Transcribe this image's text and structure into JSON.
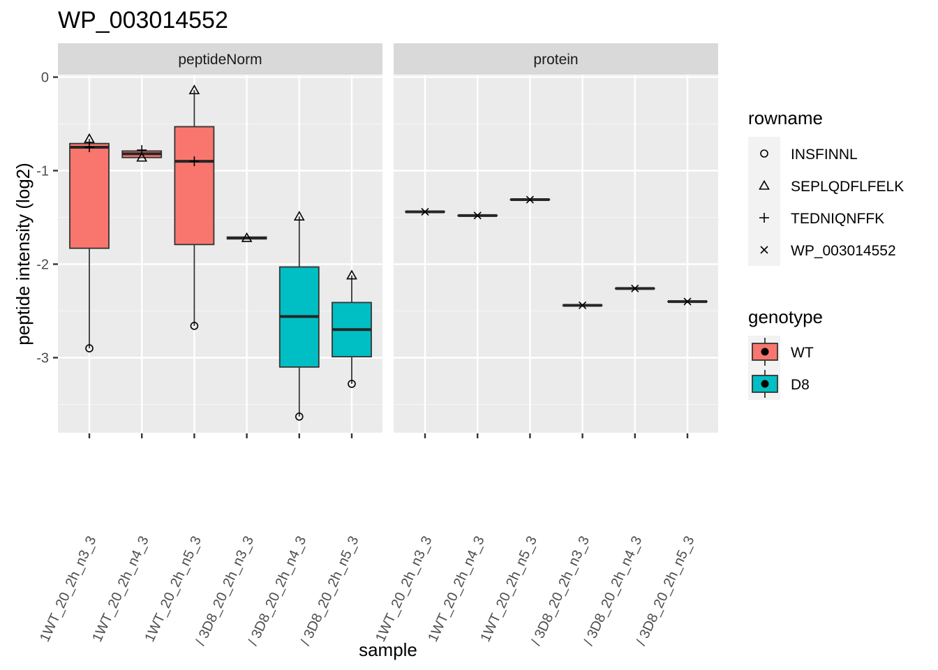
{
  "chart_data": {
    "type": "box",
    "title": "WP_003014552",
    "xlabel": "sample",
    "ylabel": "peptide intensity (log2)",
    "ylim": [
      -3.8,
      0.1
    ],
    "y_ticks": [
      0,
      -1,
      -2,
      -3
    ],
    "y_tick_labels": [
      "0",
      "-1",
      "-2",
      "-3"
    ],
    "grid": true,
    "legend_position": "right",
    "facets": [
      "peptideNorm",
      "protein"
    ],
    "x_tick_labels": [
      "1WT_20_2h_n3_3",
      "1WT_20_2h_n4_3",
      "1WT_20_2h_n5_3",
      "/ 3D8_20_2h_n3_3",
      "/ 3D8_20_2h_n4_3",
      "/ 3D8_20_2h_n5_3"
    ],
    "genotype_legend": {
      "title": "genotype",
      "items": [
        {
          "label": "WT",
          "color": "#F8766D"
        },
        {
          "label": "D8",
          "color": "#00BFC4"
        }
      ]
    },
    "rowname_legend": {
      "title": "rowname",
      "items": [
        {
          "label": "INSFINNL",
          "shape": "circle"
        },
        {
          "label": "SEPLQDFLFELK",
          "shape": "triangle"
        },
        {
          "label": "TEDNIQNFFK",
          "shape": "plus"
        },
        {
          "label": "WP_003014552",
          "shape": "cross"
        }
      ]
    },
    "panels": [
      {
        "facet": "peptideNorm",
        "boxes": [
          {
            "sample": 0,
            "genotype": "WT",
            "q1": -1.83,
            "median": -0.75,
            "q3": -0.71,
            "whisker_low": -2.9,
            "whisker_high": -0.66
          },
          {
            "sample": 1,
            "genotype": "WT",
            "q1": -0.86,
            "median": -0.82,
            "q3": -0.79,
            "whisker_low": -0.86,
            "whisker_high": -0.79
          },
          {
            "sample": 2,
            "genotype": "WT",
            "q1": -1.79,
            "median": -0.9,
            "q3": -0.53,
            "whisker_low": -2.66,
            "whisker_high": -0.14
          },
          {
            "sample": 3,
            "genotype": "D8",
            "q1": -1.73,
            "median": -1.72,
            "q3": -1.71,
            "whisker_low": -1.73,
            "whisker_high": -1.71
          },
          {
            "sample": 4,
            "genotype": "D8",
            "q1": -3.1,
            "median": -2.56,
            "q3": -2.03,
            "whisker_low": -3.63,
            "whisker_high": -1.49
          },
          {
            "sample": 5,
            "genotype": "D8",
            "q1": -2.99,
            "median": -2.7,
            "q3": -2.41,
            "whisker_low": -3.28,
            "whisker_high": -2.12
          }
        ],
        "points": [
          {
            "sample": 0,
            "rowname": "INSFINNL",
            "y": -2.9
          },
          {
            "sample": 0,
            "rowname": "SEPLQDFLFELK",
            "y": -0.66
          },
          {
            "sample": 0,
            "rowname": "TEDNIQNFFK",
            "y": -0.75
          },
          {
            "sample": 1,
            "rowname": "SEPLQDFLFELK",
            "y": -0.86
          },
          {
            "sample": 1,
            "rowname": "TEDNIQNFFK",
            "y": -0.78
          },
          {
            "sample": 2,
            "rowname": "INSFINNL",
            "y": -2.66
          },
          {
            "sample": 2,
            "rowname": "SEPLQDFLFELK",
            "y": -0.14
          },
          {
            "sample": 2,
            "rowname": "TEDNIQNFFK",
            "y": -0.9
          },
          {
            "sample": 3,
            "rowname": "SEPLQDFLFELK",
            "y": -1.72
          },
          {
            "sample": 4,
            "rowname": "INSFINNL",
            "y": -3.63
          },
          {
            "sample": 4,
            "rowname": "SEPLQDFLFELK",
            "y": -1.49
          },
          {
            "sample": 5,
            "rowname": "INSFINNL",
            "y": -3.28
          },
          {
            "sample": 5,
            "rowname": "SEPLQDFLFELK",
            "y": -2.12
          }
        ]
      },
      {
        "facet": "protein",
        "boxes": [
          {
            "sample": 0,
            "genotype": "WT",
            "q1": -1.44,
            "median": -1.44,
            "q3": -1.44,
            "whisker_low": -1.44,
            "whisker_high": -1.44
          },
          {
            "sample": 1,
            "genotype": "WT",
            "q1": -1.48,
            "median": -1.48,
            "q3": -1.48,
            "whisker_low": -1.48,
            "whisker_high": -1.48
          },
          {
            "sample": 2,
            "genotype": "WT",
            "q1": -1.31,
            "median": -1.31,
            "q3": -1.31,
            "whisker_low": -1.31,
            "whisker_high": -1.31
          },
          {
            "sample": 3,
            "genotype": "D8",
            "q1": -2.44,
            "median": -2.44,
            "q3": -2.44,
            "whisker_low": -2.44,
            "whisker_high": -2.44
          },
          {
            "sample": 4,
            "genotype": "D8",
            "q1": -2.26,
            "median": -2.26,
            "q3": -2.26,
            "whisker_low": -2.26,
            "whisker_high": -2.26
          },
          {
            "sample": 5,
            "genotype": "D8",
            "q1": -2.4,
            "median": -2.4,
            "q3": -2.4,
            "whisker_low": -2.4,
            "whisker_high": -2.4
          }
        ],
        "points": [
          {
            "sample": 0,
            "rowname": "WP_003014552",
            "y": -1.44
          },
          {
            "sample": 1,
            "rowname": "WP_003014552",
            "y": -1.48
          },
          {
            "sample": 2,
            "rowname": "WP_003014552",
            "y": -1.31
          },
          {
            "sample": 3,
            "rowname": "WP_003014552",
            "y": -2.44
          },
          {
            "sample": 4,
            "rowname": "WP_003014552",
            "y": -2.26
          },
          {
            "sample": 5,
            "rowname": "WP_003014552",
            "y": -2.4
          }
        ]
      }
    ]
  }
}
